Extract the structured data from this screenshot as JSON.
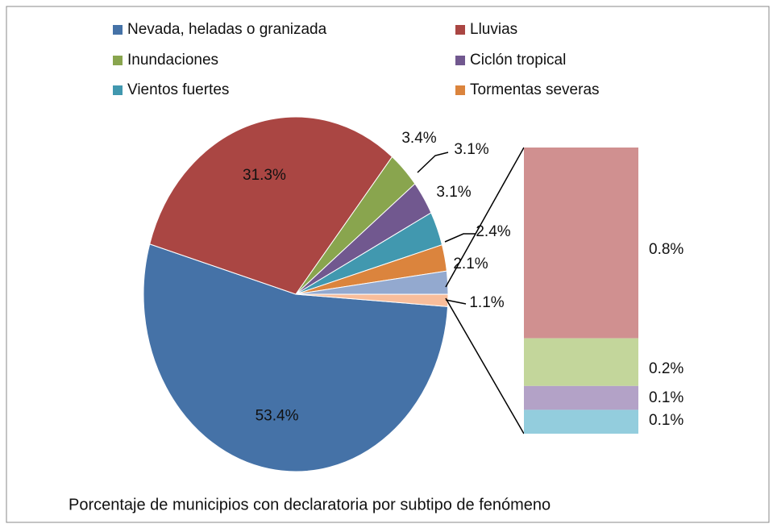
{
  "chart_data": {
    "type": "pie",
    "title": "Porcentaje de municipios con declaratoria por subtipo de fenómeno",
    "categories": [
      "Nevada, heladas o granizada",
      "Lluvias",
      "Inundaciones",
      "Ciclón tropical",
      "Vientos fuertes",
      "Tormentas severas",
      null,
      null
    ],
    "values": [
      53.4,
      31.3,
      3.4,
      3.1,
      3.1,
      2.4,
      2.1,
      1.1
    ],
    "value_labels": [
      "53.4%",
      "31.3%",
      "3.4%",
      "3.1%",
      "3.1%",
      "2.4%",
      "2.1%",
      "1.1%"
    ],
    "colors": [
      "#4572a7",
      "#aa4643",
      "#89a54e",
      "#71588f",
      "#4198af",
      "#db843d",
      "#93a9cf",
      "#f8bd9b"
    ],
    "bar": {
      "values": [
        0.8,
        0.2,
        0.1,
        0.1
      ],
      "value_labels": [
        "0.8%",
        "0.2%",
        "0.1%",
        "0.1%"
      ],
      "colors": [
        "#d09090",
        "#c3d69b",
        "#b3a2c7",
        "#93cddd"
      ]
    }
  }
}
